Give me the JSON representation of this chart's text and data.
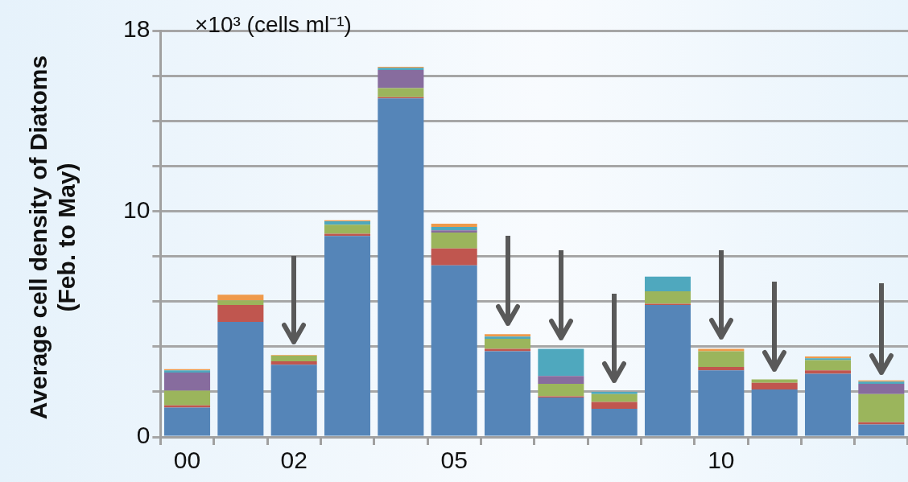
{
  "chart_data": {
    "type": "bar",
    "stacked": true,
    "ylabel": "Average cell density of Diatoms (Feb. to May)",
    "annotations": [
      "×10³ (cells ml⁻¹)"
    ],
    "categories": [
      "00",
      null,
      "02",
      null,
      null,
      "05",
      null,
      null,
      null,
      null,
      "10",
      null,
      null,
      null
    ],
    "series": [
      {
        "color": "#5585b8",
        "values": [
          1.3,
          5.1,
          3.2,
          8.9,
          15.0,
          7.6,
          3.8,
          1.75,
          1.25,
          5.85,
          2.95,
          2.1,
          2.8,
          0.55
        ]
      },
      {
        "color": "#c0564f",
        "values": [
          0.1,
          0.75,
          0.15,
          0.1,
          0.05,
          0.75,
          0.1,
          0.05,
          0.3,
          0.05,
          0.15,
          0.3,
          0.15,
          0.1
        ]
      },
      {
        "color": "#9bb55c",
        "values": [
          0.65,
          0.2,
          0.25,
          0.4,
          0.4,
          0.7,
          0.45,
          0.55,
          0.35,
          0.55,
          0.7,
          0.15,
          0.45,
          1.25
        ]
      },
      {
        "color": "#876c9e",
        "values": [
          0.8,
          0,
          0,
          null,
          0.8,
          0.1,
          0,
          0.35,
          0,
          null,
          null,
          0,
          0,
          0.45
        ]
      },
      {
        "color": "#4fa8be",
        "values": [
          0.1,
          0,
          0,
          0.15,
          0.1,
          0.15,
          0.1,
          1.2,
          0.1,
          0.65,
          0,
          0,
          0.08,
          0.1
        ]
      },
      {
        "color": "#ef9a4b",
        "values": [
          0.05,
          0.25,
          0.03,
          0.05,
          0.05,
          0.15,
          0.1,
          0,
          0,
          0,
          0.1,
          null,
          0.08,
          0.05
        ]
      }
    ],
    "ylim": [
      0,
      18
    ],
    "yticks": [
      0,
      {
        "value": 2,
        "label": null
      },
      {
        "value": 4,
        "label": null
      },
      {
        "value": 6,
        "label": null
      },
      {
        "value": 8,
        "label": null
      },
      10,
      {
        "value": 12,
        "label": null
      },
      {
        "value": 14,
        "label": null
      },
      {
        "value": 16,
        "label": null
      },
      18
    ],
    "grid": "y",
    "legend": false
  }
}
